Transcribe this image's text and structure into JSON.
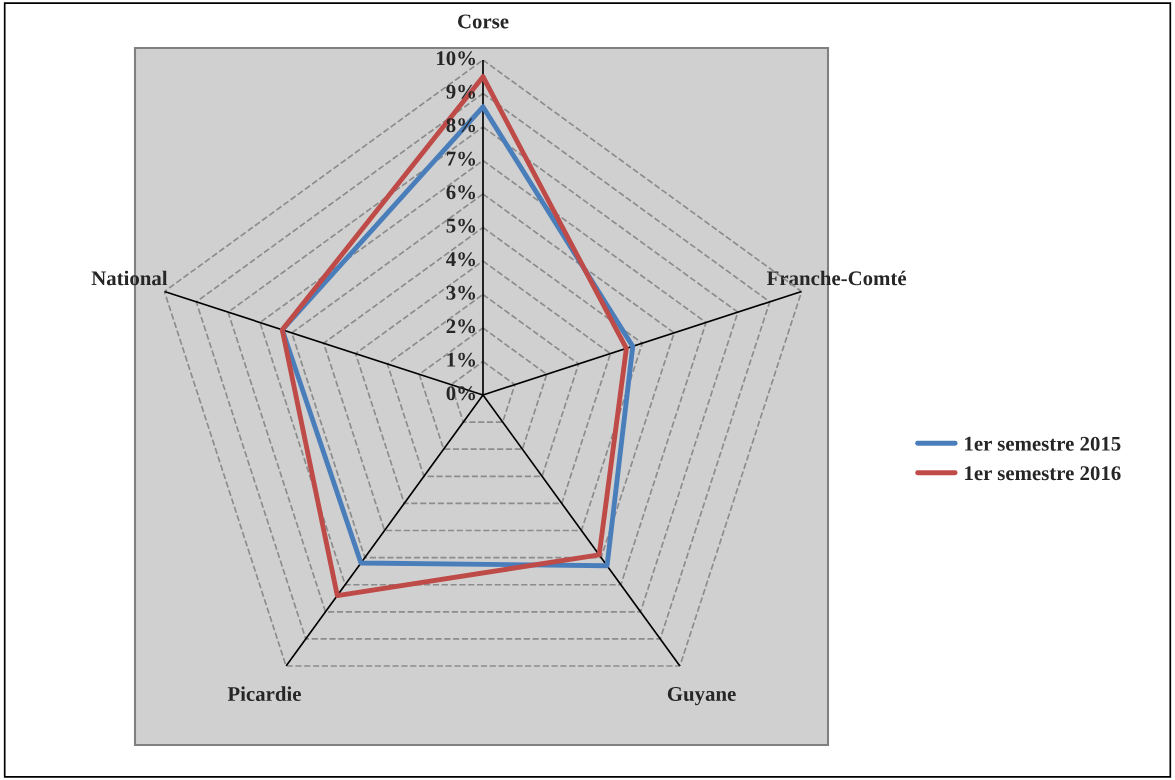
{
  "chart_data": {
    "type": "radar",
    "categories": [
      "Corse",
      "Franche-Comté",
      "Guyane",
      "Picardie",
      "National"
    ],
    "series": [
      {
        "name": "1er semestre 2015",
        "color": "#4a7ebb",
        "values": [
          8.6,
          4.7,
          6.3,
          6.2,
          6.3
        ]
      },
      {
        "name": "1er semestre 2016",
        "color": "#be4b48",
        "values": [
          9.5,
          4.5,
          5.9,
          7.4,
          6.3
        ]
      }
    ],
    "ylim": [
      0,
      10
    ],
    "yticks": [
      {
        "value": 0,
        "label": "0%"
      },
      {
        "value": 1,
        "label": "1%"
      },
      {
        "value": 2,
        "label": "2%"
      },
      {
        "value": 3,
        "label": "3%"
      },
      {
        "value": 4,
        "label": "4%"
      },
      {
        "value": 5,
        "label": "5%"
      },
      {
        "value": 6,
        "label": "6%"
      },
      {
        "value": 7,
        "label": "7%"
      },
      {
        "value": 8,
        "label": "8%"
      },
      {
        "value": 9,
        "label": "9%"
      },
      {
        "value": 10,
        "label": "10%"
      }
    ],
    "grid": true,
    "legend": "right",
    "marker": "none",
    "line_style": "solid"
  }
}
